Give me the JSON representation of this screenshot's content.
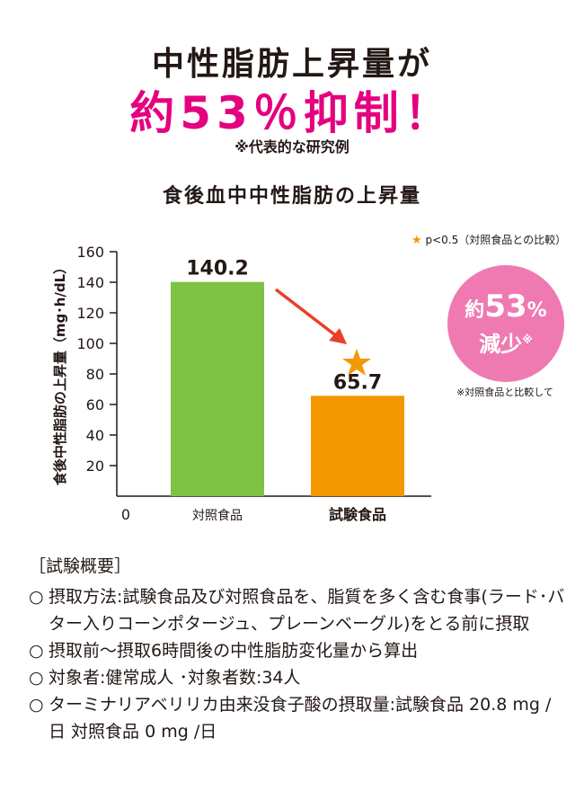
{
  "headline": {
    "line1": "中性脂肪上昇量が",
    "line2": "約53％抑制！",
    "note": "※代表的な研究例"
  },
  "chart_data": {
    "type": "bar",
    "title": "食後血中中性脂肪の上昇量",
    "ylabel": "食後中性脂肪の上昇量（mg･h/dL）",
    "xlabel": "",
    "categories": [
      "対照食品",
      "試験食品"
    ],
    "values": [
      140.2,
      65.7
    ],
    "value_labels": [
      "140.2",
      "65.7"
    ],
    "ylim": [
      0,
      160
    ],
    "yticks": [
      "160",
      "140",
      "120",
      "100",
      "80",
      "60",
      "40",
      "20"
    ],
    "y_zero_label": "0",
    "colors": [
      "#7dc242",
      "#f39800"
    ],
    "significance_note": "p<0.5（対照食品との比較）",
    "significance_marker": "★",
    "badge": {
      "prefix": "約",
      "number": "53",
      "unit": "%",
      "text": "減少",
      "mark": "※"
    },
    "badge_note": "※対照食品と比較して"
  },
  "summary": {
    "heading": "［試験概要］",
    "bullet": "○",
    "items": [
      "摂取方法:試験食品及び対照食品を、脂質を多く含む食事(ラード･バター入りコーンポタージュ、プレーンベーグル)をとる前に摂取",
      "摂取前〜摂取6時間後の中性脂肪変化量から算出",
      "対象者:健常成人 ･対象者数:34人",
      "ターミナリアベリリカ由来没食子酸の摂取量:試験食品 20.8 mg /日 対照食品 0 mg /日"
    ]
  }
}
